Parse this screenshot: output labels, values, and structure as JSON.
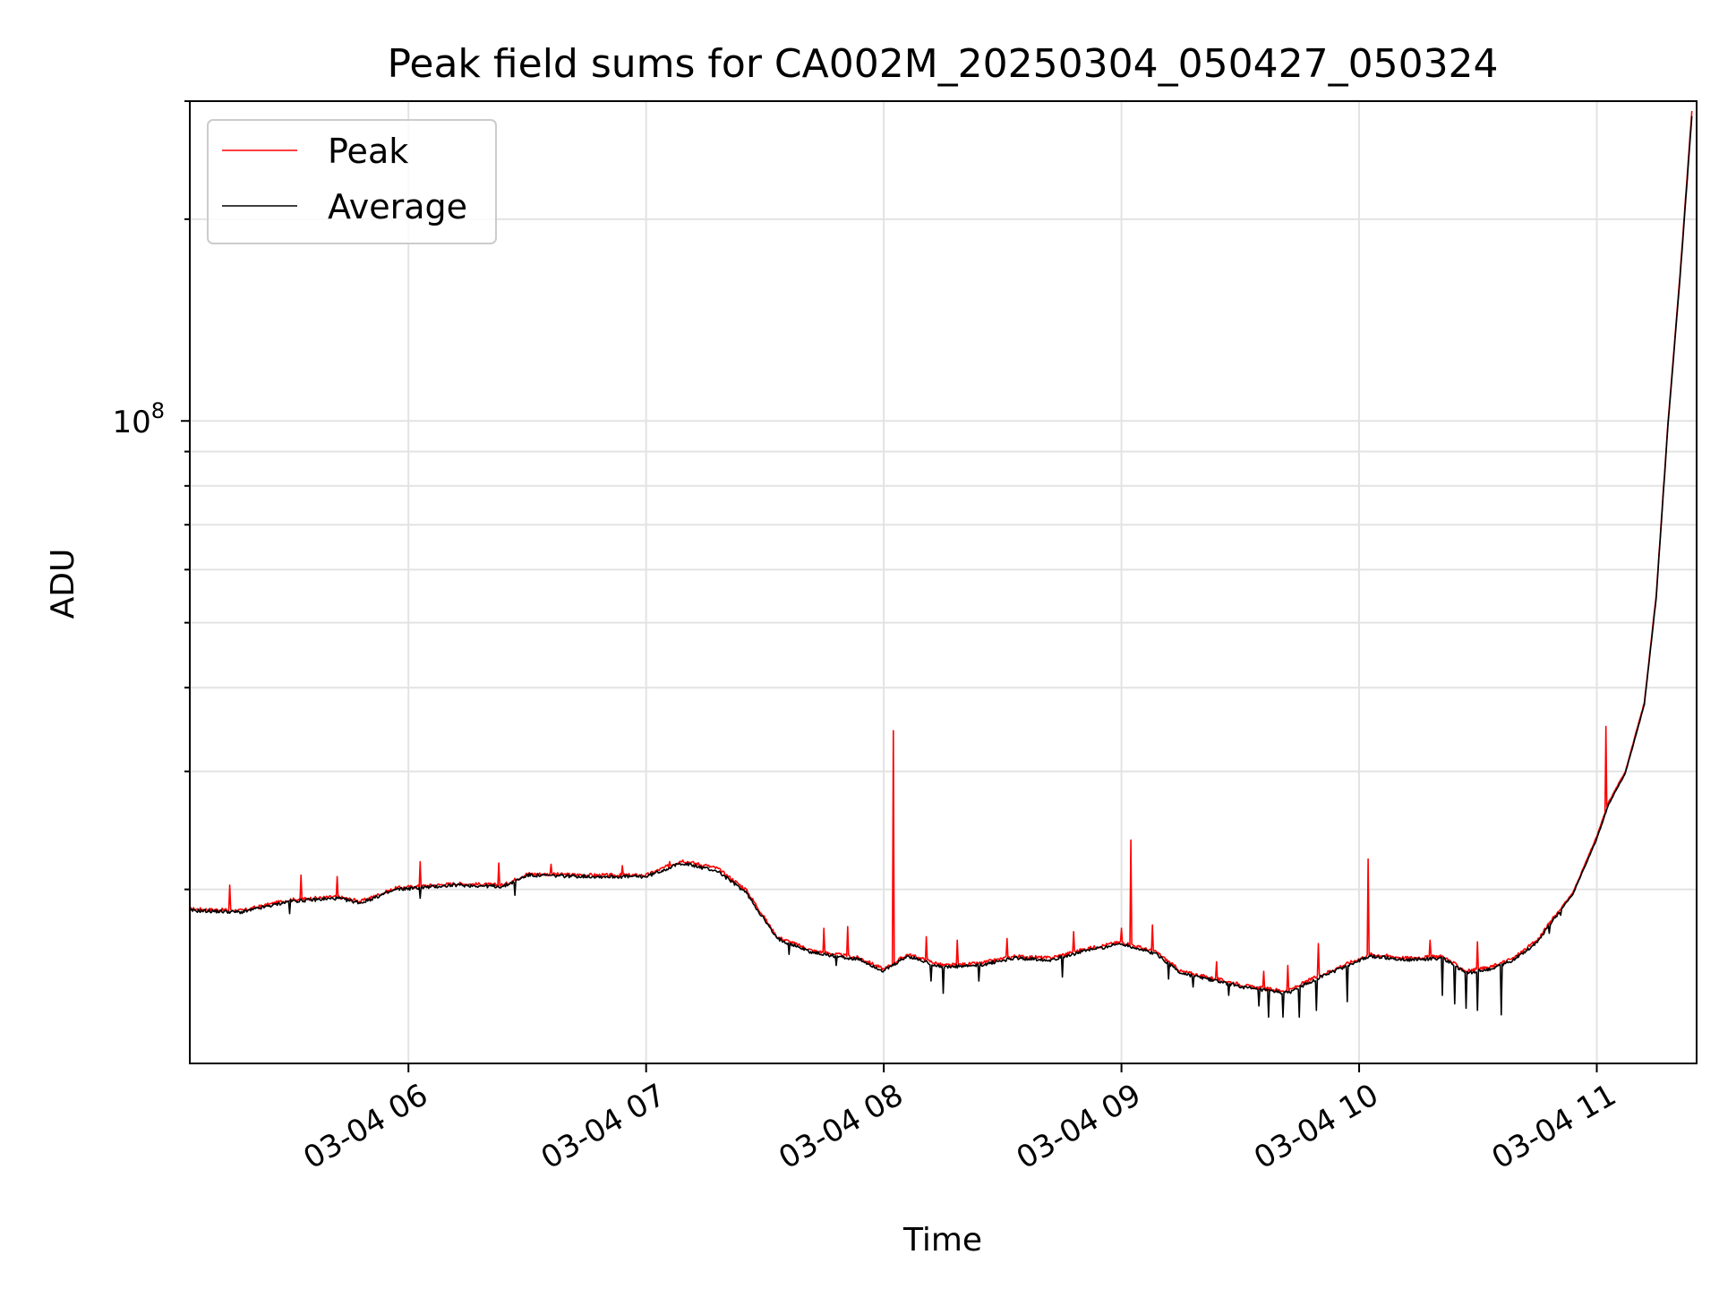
{
  "chart_data": {
    "type": "line",
    "title": "Peak field sums for CA002M_20250304_050427_050324",
    "xlabel": "Time",
    "ylabel": "ADU",
    "yscale": "log",
    "x_tick_labels": [
      "03-04 06",
      "03-04 07",
      "03-04 08",
      "03-04 09",
      "03-04 10",
      "03-04 11"
    ],
    "x_ticks_hours": [
      6,
      7,
      8,
      9,
      10,
      11
    ],
    "y_tick_labels": [
      {
        "value": 100000000,
        "base": "10",
        "exp": "8"
      }
    ],
    "xlim_hours": [
      5.08,
      11.42
    ],
    "ylim": [
      11000000,
      300000000
    ],
    "grid": true,
    "legend_position": "upper left",
    "series": [
      {
        "name": "Peak",
        "color": "#ff0000",
        "points": [
          [
            5.08,
            18.7
          ],
          [
            5.3,
            18.6
          ],
          [
            5.5,
            19.3
          ],
          [
            5.7,
            19.5
          ],
          [
            5.8,
            19.2
          ],
          [
            5.95,
            20.1
          ],
          [
            6.2,
            20.4
          ],
          [
            6.4,
            20.3
          ],
          [
            6.5,
            21.1
          ],
          [
            6.8,
            21.0
          ],
          [
            7.0,
            21.0
          ],
          [
            7.15,
            22.1
          ],
          [
            7.3,
            21.5
          ],
          [
            7.42,
            20.0
          ],
          [
            7.55,
            17.0
          ],
          [
            7.7,
            16.2
          ],
          [
            7.9,
            15.8
          ],
          [
            8.0,
            15.2
          ],
          [
            8.1,
            16.0
          ],
          [
            8.25,
            15.4
          ],
          [
            8.4,
            15.5
          ],
          [
            8.55,
            15.9
          ],
          [
            8.7,
            15.8
          ],
          [
            8.85,
            16.3
          ],
          [
            9.0,
            16.7
          ],
          [
            9.15,
            16.1
          ],
          [
            9.25,
            15.1
          ],
          [
            9.4,
            14.7
          ],
          [
            9.55,
            14.3
          ],
          [
            9.7,
            14.1
          ],
          [
            9.8,
            14.7
          ],
          [
            9.95,
            15.5
          ],
          [
            10.05,
            16.0
          ],
          [
            10.2,
            15.8
          ],
          [
            10.35,
            15.9
          ],
          [
            10.45,
            15.1
          ],
          [
            10.55,
            15.3
          ],
          [
            10.65,
            15.8
          ],
          [
            10.75,
            16.8
          ],
          [
            10.8,
            17.8
          ],
          [
            10.9,
            19.8
          ],
          [
            11.0,
            24.0
          ],
          [
            11.05,
            27.0
          ],
          [
            11.12,
            30.0
          ],
          [
            11.2,
            38.0
          ],
          [
            11.25,
            55.0
          ],
          [
            11.3,
            100.0
          ],
          [
            11.35,
            165.0
          ],
          [
            11.4,
            290.0
          ]
        ],
        "spikes": [
          [
            5.25,
            20.3
          ],
          [
            5.55,
            21.0
          ],
          [
            5.7,
            20.9
          ],
          [
            6.05,
            22.0
          ],
          [
            6.38,
            21.9
          ],
          [
            6.6,
            21.8
          ],
          [
            6.9,
            21.7
          ],
          [
            7.1,
            22.0
          ],
          [
            7.25,
            21.8
          ],
          [
            7.75,
            17.5
          ],
          [
            7.85,
            17.6
          ],
          [
            8.04,
            34.5
          ],
          [
            8.18,
            17.0
          ],
          [
            8.31,
            16.8
          ],
          [
            8.52,
            16.9
          ],
          [
            8.8,
            17.3
          ],
          [
            9.0,
            17.5
          ],
          [
            9.04,
            23.7
          ],
          [
            9.13,
            17.7
          ],
          [
            9.4,
            15.6
          ],
          [
            9.6,
            15.1
          ],
          [
            9.7,
            15.4
          ],
          [
            9.83,
            16.6
          ],
          [
            10.04,
            22.2
          ],
          [
            10.3,
            16.8
          ],
          [
            10.5,
            16.7
          ],
          [
            11.04,
            35.0
          ]
        ]
      },
      {
        "name": "Average",
        "color": "#000000",
        "points": [
          [
            5.08,
            18.6
          ],
          [
            5.3,
            18.5
          ],
          [
            5.5,
            19.2
          ],
          [
            5.7,
            19.4
          ],
          [
            5.8,
            19.1
          ],
          [
            5.95,
            20.0
          ],
          [
            6.2,
            20.3
          ],
          [
            6.4,
            20.2
          ],
          [
            6.5,
            21.0
          ],
          [
            6.8,
            20.9
          ],
          [
            7.0,
            20.9
          ],
          [
            7.15,
            21.9
          ],
          [
            7.3,
            21.3
          ],
          [
            7.42,
            19.8
          ],
          [
            7.55,
            16.9
          ],
          [
            7.7,
            16.1
          ],
          [
            7.9,
            15.7
          ],
          [
            8.0,
            15.1
          ],
          [
            8.1,
            15.9
          ],
          [
            8.25,
            15.3
          ],
          [
            8.4,
            15.4
          ],
          [
            8.55,
            15.8
          ],
          [
            8.7,
            15.7
          ],
          [
            8.85,
            16.2
          ],
          [
            9.0,
            16.6
          ],
          [
            9.15,
            16.0
          ],
          [
            9.25,
            15.0
          ],
          [
            9.4,
            14.6
          ],
          [
            9.55,
            14.2
          ],
          [
            9.7,
            14.0
          ],
          [
            9.8,
            14.6
          ],
          [
            9.95,
            15.4
          ],
          [
            10.05,
            15.9
          ],
          [
            10.2,
            15.7
          ],
          [
            10.35,
            15.8
          ],
          [
            10.45,
            15.0
          ],
          [
            10.55,
            15.2
          ],
          [
            10.65,
            15.7
          ],
          [
            10.75,
            16.7
          ],
          [
            10.8,
            17.7
          ],
          [
            10.9,
            19.7
          ],
          [
            11.0,
            23.8
          ],
          [
            11.05,
            26.8
          ],
          [
            11.12,
            29.8
          ],
          [
            11.2,
            37.7
          ],
          [
            11.25,
            54.5
          ],
          [
            11.3,
            99.0
          ],
          [
            11.35,
            163.0
          ],
          [
            11.4,
            285.0
          ]
        ],
        "dips": [
          [
            5.5,
            18.4
          ],
          [
            6.05,
            19.4
          ],
          [
            6.45,
            19.6
          ],
          [
            7.6,
            16.0
          ],
          [
            7.8,
            15.4
          ],
          [
            8.2,
            14.6
          ],
          [
            8.25,
            14.0
          ],
          [
            8.4,
            14.6
          ],
          [
            8.75,
            14.8
          ],
          [
            9.2,
            14.7
          ],
          [
            9.3,
            14.3
          ],
          [
            9.45,
            13.9
          ],
          [
            9.58,
            13.4
          ],
          [
            9.62,
            12.9
          ],
          [
            9.68,
            12.9
          ],
          [
            9.75,
            12.9
          ],
          [
            9.82,
            13.2
          ],
          [
            9.95,
            13.6
          ],
          [
            10.35,
            13.9
          ],
          [
            10.4,
            13.5
          ],
          [
            10.45,
            13.3
          ],
          [
            10.5,
            13.2
          ],
          [
            10.6,
            13.0
          ],
          [
            10.8,
            17.2
          ],
          [
            10.85,
            18.3
          ]
        ]
      }
    ]
  }
}
